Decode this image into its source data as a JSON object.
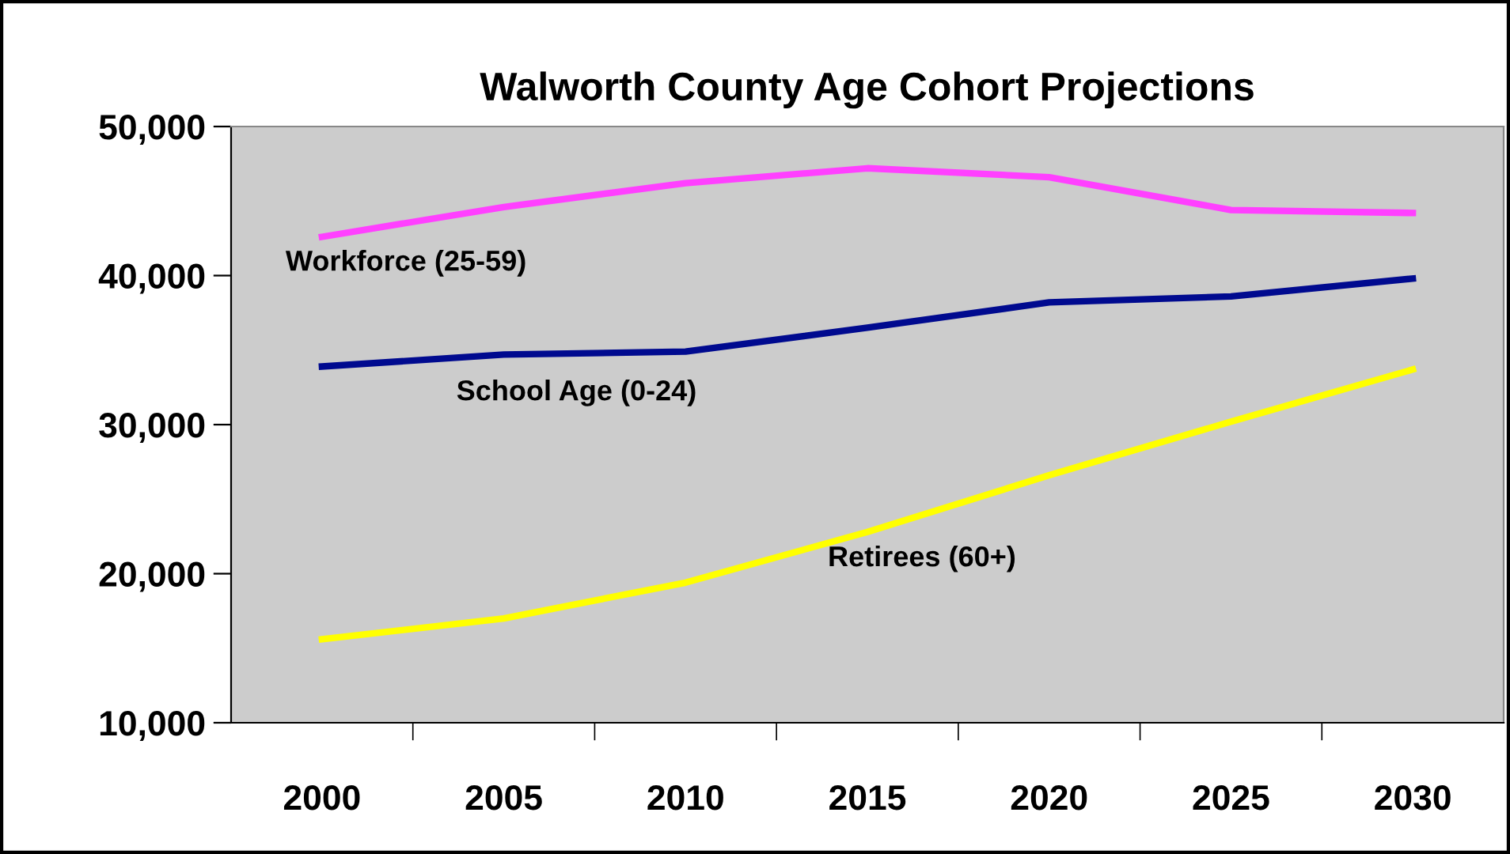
{
  "chart_data": {
    "type": "line",
    "title": "Walworth County Age Cohort Projections",
    "categories": [
      "2000",
      "2005",
      "2010",
      "2015",
      "2020",
      "2025",
      "2030"
    ],
    "series": [
      {
        "name": "Workforce (25-59)",
        "color": "#ff40ff",
        "values": [
          42600,
          44600,
          46200,
          47200,
          46600,
          44400,
          44200
        ]
      },
      {
        "name": "School Age (0-24)",
        "color": "#000a8f",
        "values": [
          33900,
          34700,
          34900,
          36500,
          38200,
          38600,
          39800
        ]
      },
      {
        "name": "Retirees (60+)",
        "color": "#ffff00",
        "values": [
          15600,
          17000,
          19400,
          22800,
          26600,
          30200,
          33700
        ]
      }
    ],
    "ylim": [
      10000,
      50000
    ],
    "yticks": [
      {
        "value": 10000,
        "label": "10,000"
      },
      {
        "value": 20000,
        "label": "20,000"
      },
      {
        "value": 30000,
        "label": "30,000"
      },
      {
        "value": 40000,
        "label": "40,000"
      },
      {
        "value": 50000,
        "label": "50,000"
      }
    ],
    "grid": false,
    "legend": false,
    "marker": "none",
    "line_style": "solid"
  }
}
